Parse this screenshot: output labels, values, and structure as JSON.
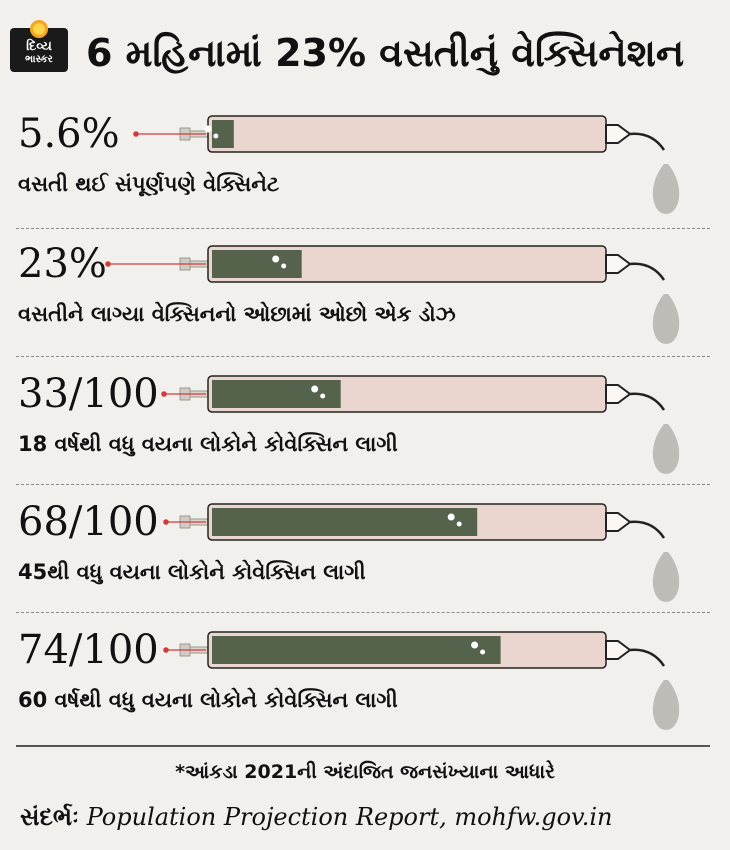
{
  "header": {
    "logo_top": "દિવ્ય",
    "logo_bottom": "ભાસ્કર",
    "title": "6 મહિનામાં 23% વસતીનું વેક્સિનેશન"
  },
  "chart_data": {
    "type": "bar",
    "title": "6 મહિનામાં 23% વસતીનું વેક્સિનેશન",
    "ylim": [
      0,
      100
    ],
    "categories": [
      "વસતી થઈ સંપૂર્ણપણે વેક્સિનેટ",
      "વસતીને લાગ્યા વેક્સિનનો ઓછામાં ઓછો એક ડોઝ",
      "18 વર્ષથી વધુ વયના લોકોને કોવેક્સિન લાગી",
      "45થી વધુ વયના લોકોને કોવેક્સિન લાગી",
      "60 વર્ષથી વધુ વયના લોકોને કોવેક્સિન લાગી"
    ],
    "values": [
      5.6,
      23,
      33,
      68,
      74
    ],
    "value_labels": [
      "5.6%",
      "23%",
      "33/100",
      "68/100",
      "74/100"
    ]
  },
  "footnote": "*આંકડા 2021ની અંદાજિત જનસંખ્યાના આધારે",
  "source": {
    "label": "સંદર્ભઃ",
    "text": "Population Projection Report, mohfw.gov.in"
  },
  "colors": {
    "fill": "#55634d",
    "barrel": "#ebd6cf",
    "outline": "#222222",
    "pointer": "#d33b3b",
    "drop": "#bdbcb6"
  }
}
